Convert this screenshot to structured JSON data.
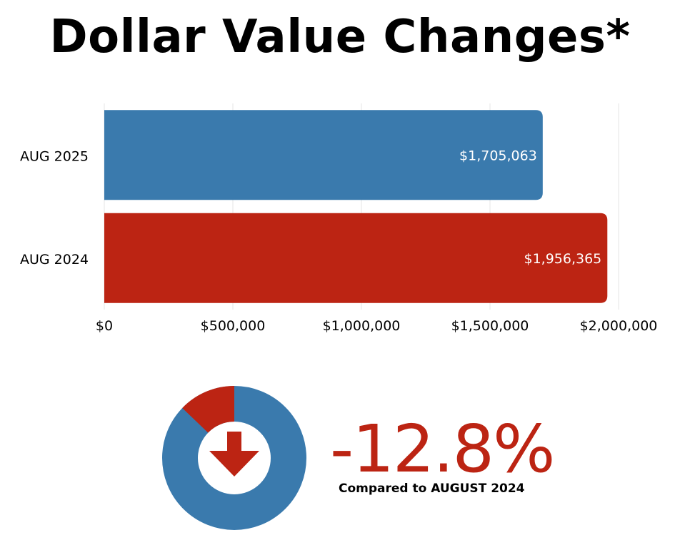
{
  "title": "Dollar Value Changes*",
  "colors": {
    "blue": "#3a7aad",
    "red": "#bc2413",
    "grid": "#e4e4e4",
    "text": "#000000",
    "bar_label": "#ffffff"
  },
  "chart_data": {
    "type": "bar",
    "orientation": "horizontal",
    "categories": [
      "AUG 2025",
      "AUG 2024"
    ],
    "values": [
      1705063,
      1956365
    ],
    "data_labels": [
      "$1,705,063",
      "$1,956,365"
    ],
    "bar_colors": [
      "#3a7aad",
      "#bc2413"
    ],
    "xlim": [
      0,
      2000000
    ],
    "x_ticks": [
      0,
      500000,
      1000000,
      1500000,
      2000000
    ],
    "x_tick_labels": [
      "$0",
      "$500,000",
      "$1,000,000",
      "$1,500,000",
      "$2,000,000"
    ],
    "grid": true,
    "title": "Dollar Value Changes*"
  },
  "change": {
    "percent_label": "-12.8%",
    "value": -12.8,
    "caption": "Compared to AUGUST 2024",
    "direction_icon": "arrow-down-icon",
    "donut_share": 0.128
  }
}
